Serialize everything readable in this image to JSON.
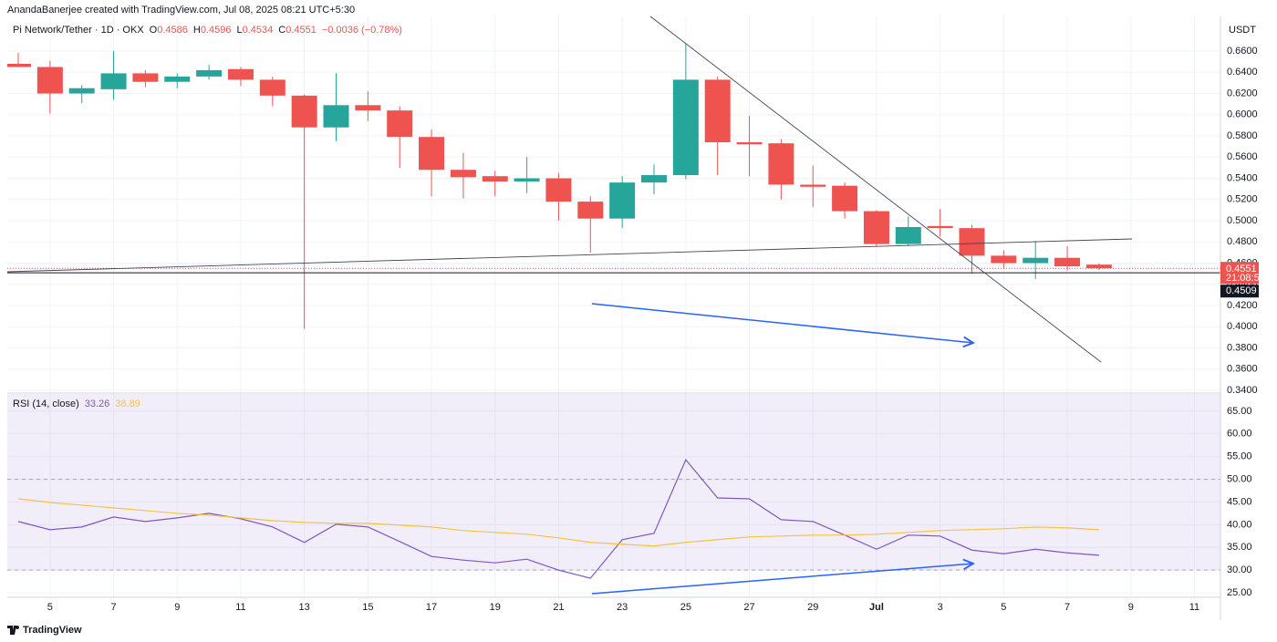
{
  "header": {
    "credit": "AnandaBanerjee created with TradingView.com, Jul 08, 2025 08:21 UTC+5:30",
    "symbol": "Pi Network/Tether · 1D · OKX",
    "ohlc_labels": [
      "O",
      "H",
      "L",
      "C"
    ],
    "change": "−0.0036 (−0.78%)"
  },
  "brand": "TradingView",
  "chart_data": [
    {
      "type": "candlestick",
      "unit": "USDT",
      "categories": [
        null,
        "5",
        null,
        "7",
        null,
        "9",
        null,
        "11",
        null,
        "13",
        null,
        "15",
        null,
        "17",
        null,
        "19",
        null,
        "21",
        null,
        "23",
        null,
        "25",
        null,
        "27",
        null,
        "29",
        null,
        "Jul",
        null,
        "3",
        null,
        "5",
        null,
        "7",
        null,
        "9",
        null,
        "11"
      ],
      "open": [
        0.648,
        0.645,
        0.62,
        0.624,
        0.639,
        0.631,
        0.636,
        0.643,
        0.633,
        0.618,
        0.588,
        0.609,
        0.604,
        0.579,
        0.548,
        0.542,
        0.537,
        0.54,
        0.518,
        0.502,
        0.536,
        0.543,
        0.633,
        0.574,
        0.573,
        0.534,
        0.533,
        0.509,
        0.478,
        0.495,
        0.493,
        0.467,
        0.46,
        0.465,
        0.4586,
        null,
        null,
        null
      ],
      "high": [
        0.6585,
        0.651,
        0.628,
        0.66,
        0.642,
        0.639,
        0.647,
        0.645,
        0.636,
        0.619,
        0.639,
        0.622,
        0.608,
        0.586,
        0.564,
        0.547,
        0.56,
        0.545,
        0.523,
        0.542,
        0.553,
        0.667,
        0.636,
        0.599,
        0.577,
        0.552,
        0.536,
        0.51,
        0.504,
        0.511,
        0.496,
        0.472,
        0.481,
        0.476,
        0.4596,
        null,
        null,
        null
      ],
      "low": [
        0.645,
        0.601,
        0.611,
        0.614,
        0.626,
        0.625,
        0.633,
        0.627,
        0.608,
        0.398,
        0.575,
        0.594,
        0.55,
        0.523,
        0.521,
        0.523,
        0.526,
        0.5,
        0.47,
        0.493,
        0.525,
        0.539,
        0.543,
        0.542,
        0.52,
        0.513,
        0.502,
        0.476,
        0.476,
        0.485,
        0.45,
        0.455,
        0.445,
        0.453,
        0.4534,
        null,
        null,
        null
      ],
      "close": [
        0.645,
        0.62,
        0.625,
        0.639,
        0.631,
        0.636,
        0.642,
        0.633,
        0.618,
        0.588,
        0.609,
        0.604,
        0.579,
        0.548,
        0.541,
        0.537,
        0.54,
        0.518,
        0.502,
        0.536,
        0.543,
        0.633,
        0.574,
        0.572,
        0.534,
        0.532,
        0.509,
        0.478,
        0.494,
        0.493,
        0.467,
        0.46,
        0.465,
        0.457,
        0.4551,
        null,
        null,
        null
      ],
      "up_color": "#26a69a",
      "down_color": "#ef5350",
      "ylim": [
        0.3383,
        0.6927
      ],
      "yticks": [
        {
          "value": 0.34,
          "label": "0.3400"
        },
        {
          "value": 0.36,
          "label": "0.3600"
        },
        {
          "value": 0.38,
          "label": "0.3800"
        },
        {
          "value": 0.4,
          "label": "0.4000"
        },
        {
          "value": 0.42,
          "label": "0.4200"
        },
        {
          "value": 0.44,
          "label": "0.4400"
        },
        {
          "value": 0.46,
          "label": "0.4600"
        },
        {
          "value": 0.48,
          "label": "0.4800"
        },
        {
          "value": 0.5,
          "label": "0.5000"
        },
        {
          "value": 0.52,
          "label": "0.5200"
        },
        {
          "value": 0.54,
          "label": "0.5400"
        },
        {
          "value": 0.56,
          "label": "0.5600"
        },
        {
          "value": 0.58,
          "label": "0.5800"
        },
        {
          "value": 0.6,
          "label": "0.6000"
        },
        {
          "value": 0.62,
          "label": "0.6200"
        },
        {
          "value": 0.64,
          "label": "0.6400"
        },
        {
          "value": 0.66,
          "label": "0.6600"
        }
      ],
      "grid": true,
      "hline": 0.4509,
      "countdown": "21:08:53"
    },
    {
      "type": "line",
      "title": "RSI (14, close)",
      "series": [
        {
          "color": "#7e57c2",
          "values": [
            40.7,
            38.9,
            39.5,
            41.7,
            40.7,
            41.5,
            42.5,
            41.3,
            39.5,
            36.1,
            40.1,
            39.5,
            36.3,
            33.0,
            32.2,
            31.6,
            32.4,
            30.0,
            28.2,
            36.7,
            38.1,
            54.3,
            45.9,
            45.7,
            41.1,
            40.7,
            37.7,
            34.6,
            37.7,
            37.5,
            34.4,
            33.6,
            34.6,
            33.8,
            33.26,
            null,
            null,
            null
          ]
        },
        {
          "color": "#f5c342",
          "values": [
            45.7,
            44.9,
            44.3,
            43.7,
            43.1,
            42.5,
            42.1,
            41.5,
            40.9,
            40.5,
            40.3,
            40.3,
            39.9,
            39.5,
            38.7,
            38.3,
            37.9,
            37.1,
            36.1,
            35.7,
            35.3,
            36.1,
            36.7,
            37.3,
            37.5,
            37.7,
            37.7,
            37.9,
            38.3,
            38.7,
            38.9,
            39.1,
            39.5,
            39.3,
            38.89,
            null,
            null,
            null
          ]
        }
      ],
      "ylim": [
        24,
        68.8
      ],
      "yticks": [
        {
          "value": 25,
          "label": "25.00"
        },
        {
          "value": 30,
          "label": "30.00"
        },
        {
          "value": 35,
          "label": "35.00"
        },
        {
          "value": 40,
          "label": "40.00"
        },
        {
          "value": 45,
          "label": "45.00"
        },
        {
          "value": 50,
          "label": "50.00"
        },
        {
          "value": 55,
          "label": "55.00"
        },
        {
          "value": 60,
          "label": "60.00"
        },
        {
          "value": 65,
          "label": "65.00"
        }
      ],
      "band": [
        30,
        70
      ],
      "band_color": "#7e57c2",
      "midline": 50
    }
  ]
}
